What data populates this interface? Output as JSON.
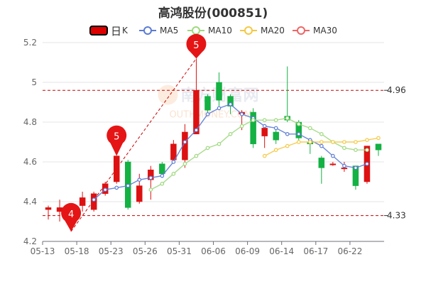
{
  "chart_data": {
    "type": "candlestick",
    "title": "高鸿股份(000851)",
    "legend": [
      {
        "name": "日",
        "suffix": "K",
        "color": "#dd0000",
        "kind": "kline"
      },
      {
        "name": "MA5",
        "color": "#5b7bd5",
        "kind": "line"
      },
      {
        "name": "MA10",
        "color": "#9fd87f",
        "kind": "line"
      },
      {
        "name": "MA20",
        "color": "#f5c842",
        "kind": "line"
      },
      {
        "name": "MA30",
        "color": "#ee6666",
        "kind": "line"
      }
    ],
    "ylim": [
      4.2,
      5.2
    ],
    "yticks": [
      "4.2",
      "4.4",
      "4.6",
      "4.8",
      "5",
      "5.2"
    ],
    "xticks": [
      {
        "i": 0,
        "label": "05-13"
      },
      {
        "i": 3,
        "label": "05-18"
      },
      {
        "i": 6,
        "label": "05-23"
      },
      {
        "i": 9,
        "label": "05-26"
      },
      {
        "i": 12,
        "label": "05-31"
      },
      {
        "i": 15,
        "label": "06-06"
      },
      {
        "i": 18,
        "label": "06-09"
      },
      {
        "i": 21,
        "label": "06-14"
      },
      {
        "i": 24,
        "label": "06-17"
      },
      {
        "i": 27,
        "label": "06-22"
      }
    ],
    "candles": [
      {
        "o": 4.36,
        "c": 4.37,
        "h": 4.38,
        "l": 4.31
      },
      {
        "o": 4.35,
        "c": 4.37,
        "h": 4.41,
        "l": 4.3
      },
      {
        "o": 4.32,
        "c": 4.34,
        "h": 4.35,
        "l": 4.25
      },
      {
        "o": 4.38,
        "c": 4.42,
        "h": 4.45,
        "l": 4.35
      },
      {
        "o": 4.36,
        "c": 4.44,
        "h": 4.45,
        "l": 4.35
      },
      {
        "o": 4.44,
        "c": 4.49,
        "h": 4.5,
        "l": 4.43
      },
      {
        "o": 4.5,
        "c": 4.63,
        "h": 4.63,
        "l": 4.49
      },
      {
        "o": 4.6,
        "c": 4.37,
        "h": 4.61,
        "l": 4.36
      },
      {
        "o": 4.4,
        "c": 4.48,
        "h": 4.54,
        "l": 4.39
      },
      {
        "o": 4.51,
        "c": 4.56,
        "h": 4.58,
        "l": 4.41
      },
      {
        "o": 4.59,
        "c": 4.54,
        "h": 4.6,
        "l": 4.52
      },
      {
        "o": 4.61,
        "c": 4.69,
        "h": 4.71,
        "l": 4.61
      },
      {
        "o": 4.61,
        "c": 4.75,
        "h": 4.79,
        "l": 4.57
      },
      {
        "o": 4.74,
        "c": 4.96,
        "h": 5.12,
        "l": 4.74
      },
      {
        "o": 4.93,
        "c": 4.86,
        "h": 4.94,
        "l": 4.84
      },
      {
        "o": 5.0,
        "c": 4.91,
        "h": 5.05,
        "l": 4.88
      },
      {
        "o": 4.93,
        "c": 4.88,
        "h": 4.94,
        "l": 4.84
      },
      {
        "o": 4.84,
        "c": 4.85,
        "h": 4.86,
        "l": 4.76
      },
      {
        "o": 4.85,
        "c": 4.69,
        "h": 4.87,
        "l": 4.67
      },
      {
        "o": 4.73,
        "c": 4.77,
        "h": 4.78,
        "l": 4.67
      },
      {
        "o": 4.75,
        "c": 4.71,
        "h": 4.76,
        "l": 4.69
      },
      {
        "o": 4.83,
        "c": 4.81,
        "h": 5.08,
        "l": 4.8
      },
      {
        "o": 4.8,
        "c": 4.72,
        "h": 4.81,
        "l": 4.7
      },
      {
        "o": 4.7,
        "c": 4.69,
        "h": 4.71,
        "l": 4.64
      },
      {
        "o": 4.62,
        "c": 4.57,
        "h": 4.63,
        "l": 4.49
      },
      {
        "o": 4.59,
        "c": 4.59,
        "h": 4.6,
        "l": 4.58
      },
      {
        "o": 4.57,
        "c": 4.57,
        "h": 4.6,
        "l": 4.55
      },
      {
        "o": 4.58,
        "c": 4.48,
        "h": 4.58,
        "l": 4.46
      },
      {
        "o": 4.5,
        "c": 4.68,
        "h": 4.68,
        "l": 4.49
      },
      {
        "o": 4.69,
        "c": 4.66,
        "h": 4.69,
        "l": 4.63
      }
    ],
    "series": [
      {
        "name": "MA5",
        "color": "#5b7bd5",
        "start": 4,
        "values": [
          4.41,
          4.46,
          4.47,
          4.48,
          4.51,
          4.52,
          4.53,
          4.6,
          4.7,
          4.76,
          4.84,
          4.87,
          4.89,
          4.84,
          4.82,
          4.78,
          4.77,
          4.74,
          4.74,
          4.71,
          4.68,
          4.63,
          4.58,
          4.57,
          4.59
        ]
      },
      {
        "name": "MA10",
        "color": "#9fd87f",
        "start": 9,
        "values": [
          4.46,
          4.49,
          4.54,
          4.59,
          4.63,
          4.67,
          4.69,
          4.74,
          4.78,
          4.81,
          4.81,
          4.81,
          4.82,
          4.79,
          4.77,
          4.74,
          4.7,
          4.67,
          4.66,
          4.66
        ]
      },
      {
        "name": "MA20",
        "color": "#f5c842",
        "start": 19,
        "values": [
          4.63,
          4.66,
          4.68,
          4.7,
          4.7,
          4.7,
          4.7,
          4.7,
          4.7,
          4.71,
          4.72
        ]
      }
    ],
    "hlines": [
      {
        "value": 4.96,
        "label": "4.96"
      },
      {
        "value": 4.33,
        "label": "4.33"
      }
    ],
    "markers": [
      {
        "label": "4",
        "i": 2,
        "y": 4.25,
        "pin_y": 4.34
      },
      {
        "label": "5",
        "i": 6,
        "y": 4.63,
        "pin_y": 4.73
      },
      {
        "label": "5",
        "i": 13,
        "y": 5.12,
        "pin_y": 5.19
      }
    ],
    "trend_lines": [
      {
        "from": {
          "i": 2,
          "y": 4.25
        },
        "to": {
          "i": 13,
          "y": 5.12
        }
      }
    ],
    "watermark": "南方财富网",
    "watermark_latin": "OUTHMONEY.COM"
  }
}
